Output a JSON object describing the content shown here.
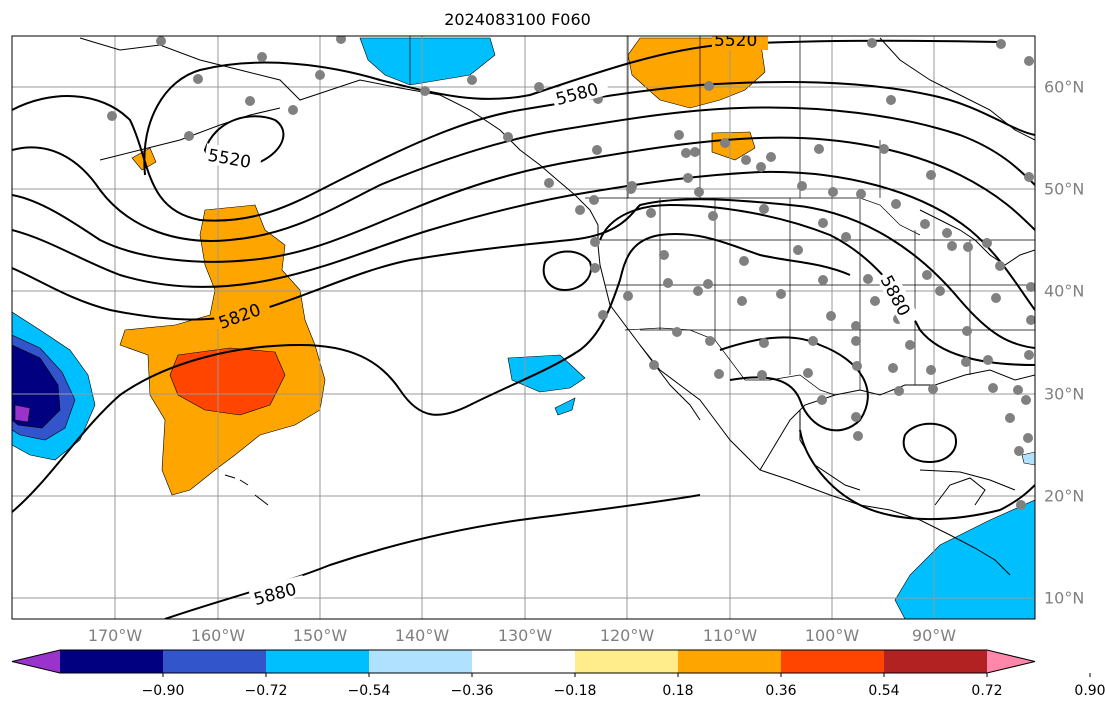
{
  "title": "2024083100 F060",
  "lon_labels": [
    "170°W",
    "160°W",
    "150°W",
    "140°W",
    "130°W",
    "120°W",
    "110°W",
    "100°W",
    "90°W"
  ],
  "lat_labels": [
    "60°N",
    "50°N",
    "40°N",
    "30°N",
    "20°N",
    "10°N"
  ],
  "colorbar": {
    "ticks": [
      "−0.90",
      "−0.72",
      "−0.54",
      "−0.36",
      "−0.18",
      "0.18",
      "0.36",
      "0.54",
      "0.72",
      "0.90"
    ],
    "colors": [
      "#9933cc",
      "#000080",
      "#3355cc",
      "#00bfff",
      "#b0e2ff",
      "#ffffff",
      "#ffec8b",
      "#ffa500",
      "#ff4500",
      "#b22222",
      "#ff88aa"
    ]
  },
  "contour_labels": [
    "5520",
    "5520",
    "5580",
    "5820",
    "5880",
    "5880"
  ],
  "colors": {
    "contour": "#000000",
    "station": "#808080",
    "grid": "#999999"
  }
}
